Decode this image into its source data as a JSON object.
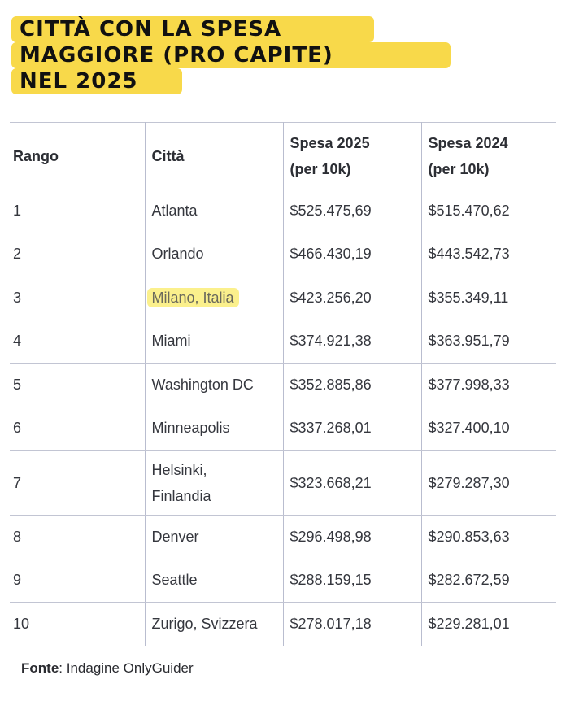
{
  "title": {
    "line1": "CITTÀ CON LA SPESA",
    "line2": "MAGGIORE  (PRO CAPITE)",
    "line3": "NEL 2025"
  },
  "table": {
    "headers": {
      "rank": "Rango",
      "city": "Città",
      "spend2025_l1": "Spesa 2025",
      "spend2025_l2": "(per 10k)",
      "spend2024_l1": "Spesa 2024",
      "spend2024_l2": "(per 10k)"
    },
    "rows": [
      {
        "rank": "1",
        "city": "Atlanta",
        "s2025": "$525.475,69",
        "s2024": "$515.470,62"
      },
      {
        "rank": "2",
        "city": "Orlando",
        "s2025": "$466.430,19",
        "s2024": "$443.542,73"
      },
      {
        "rank": "3",
        "city": "Milano, Italia",
        "s2025": "$423.256,20",
        "s2024": "$355.349,11"
      },
      {
        "rank": "4",
        "city": "Miami",
        "s2025": "$374.921,38",
        "s2024": "$363.951,79"
      },
      {
        "rank": "5",
        "city": "Washington DC",
        "s2025": "$352.885,86",
        "s2024": "$377.998,33"
      },
      {
        "rank": "6",
        "city": "Minneapolis",
        "s2025": "$337.268,01",
        "s2024": "$327.400,10"
      },
      {
        "rank": "7",
        "city_l1": "Helsinki,",
        "city_l2": "Finlandia",
        "s2025": "$323.668,21",
        "s2024": "$279.287,30"
      },
      {
        "rank": "8",
        "city": "Denver",
        "s2025": "$296.498,98",
        "s2024": "$290.853,63"
      },
      {
        "rank": "9",
        "city": "Seattle",
        "s2025": "$288.159,15",
        "s2024": "$282.672,59"
      },
      {
        "rank": "10",
        "city": "Zurigo, Svizzera",
        "s2025": "$278.017,18",
        "s2024": "$229.281,01"
      }
    ]
  },
  "source": {
    "label": "Fonte",
    "text": ": Indagine OnlyGuider"
  },
  "colors": {
    "title_highlight": "#f8d94a",
    "row_highlight": "#fbf08c",
    "grid": "#b9bdcf"
  }
}
